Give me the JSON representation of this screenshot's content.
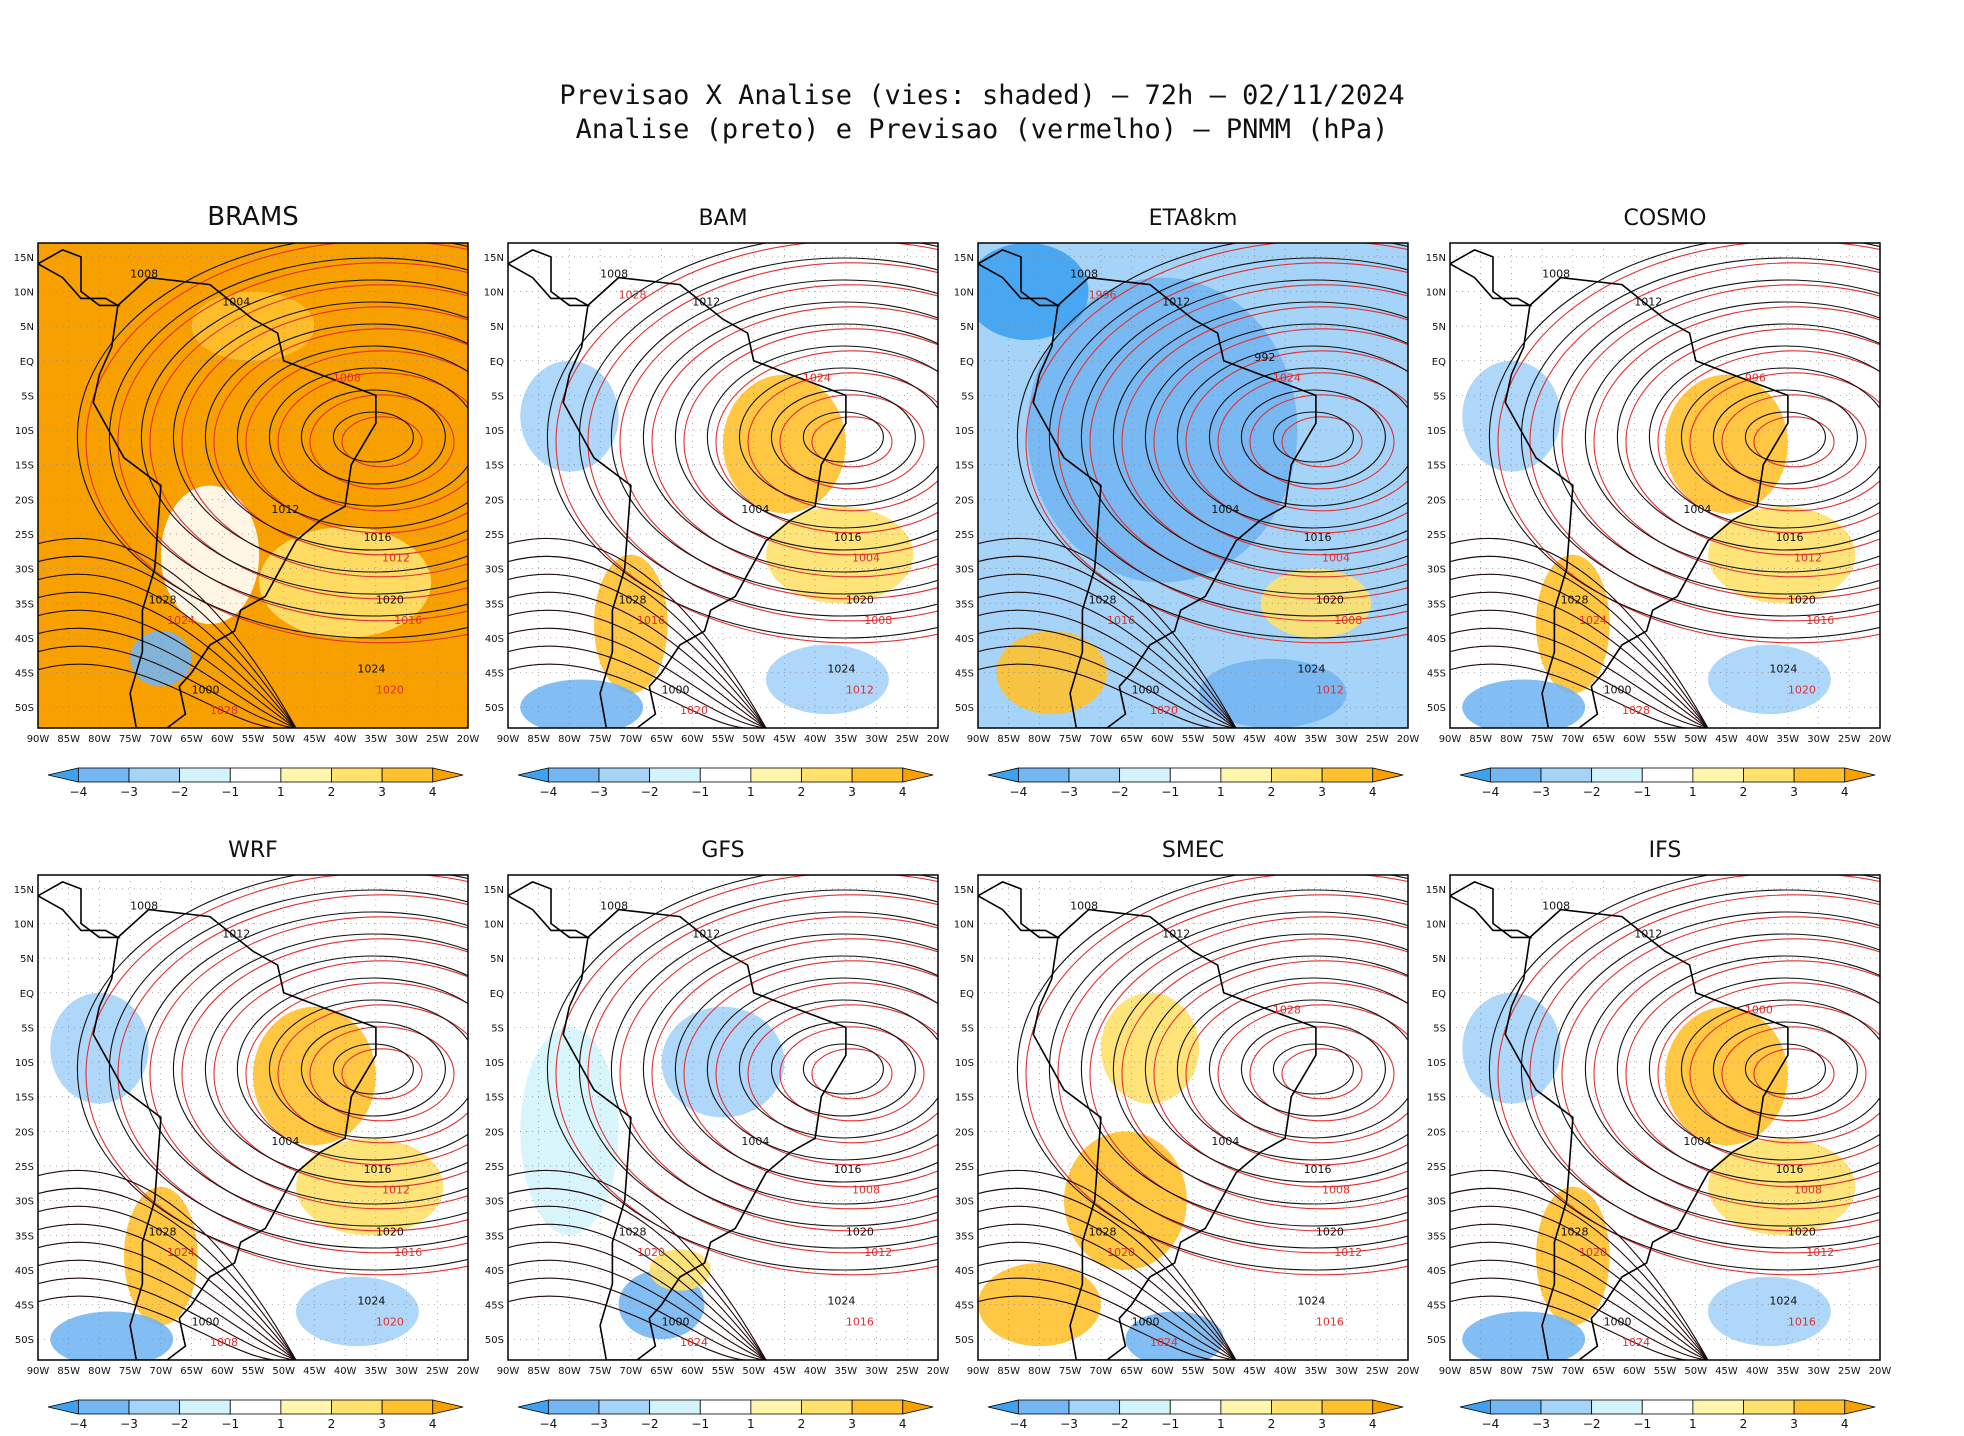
{
  "header": {
    "title_line1": "Previsao X Analise (vies: shaded) – 72h – 02/11/2024",
    "title_line2": "Analise (preto) e Previsao (vermelho) – PNMM (hPa)"
  },
  "axes": {
    "lat_labels": [
      "15N",
      "10N",
      "5N",
      "EQ",
      "5S",
      "10S",
      "15S",
      "20S",
      "25S",
      "30S",
      "35S",
      "40S",
      "45S",
      "50S"
    ],
    "lon_labels": [
      "90W",
      "85W",
      "80W",
      "75W",
      "70W",
      "65W",
      "60W",
      "55W",
      "50W",
      "45W",
      "40W",
      "35W",
      "30W",
      "25W",
      "20W"
    ]
  },
  "colorbar": {
    "labels": [
      "−4",
      "−3",
      "−2",
      "−1",
      "1",
      "2",
      "3",
      "4"
    ],
    "colors": [
      "#3fa2ef",
      "#74b6f2",
      "#a6d3f8",
      "#d4f4fc",
      "#ffffff",
      "#fff6ae",
      "#ffe16c",
      "#ffc12e",
      "#f8a000"
    ]
  },
  "colors": {
    "analysis_contour": "#111111",
    "forecast_contour": "#e23030"
  },
  "panels": [
    {
      "model": "BRAMS",
      "bias": "warm",
      "labels_black": [
        "1008",
        "1004",
        "1012",
        "1016",
        "1020",
        "1024",
        "1028",
        "1000"
      ],
      "labels_red": [
        "1012",
        "1016",
        "1020",
        "1024",
        "1028",
        "1008"
      ]
    },
    {
      "model": "BAM",
      "bias": "mixed",
      "labels_black": [
        "1008",
        "1012",
        "1004",
        "1016",
        "1020",
        "1024",
        "1028",
        "1000"
      ],
      "labels_red": [
        "1004",
        "1008",
        "1012",
        "1016",
        "1020",
        "1024",
        "1028"
      ]
    },
    {
      "model": "ETA8km",
      "bias": "cold",
      "labels_black": [
        "1008",
        "1012",
        "1004",
        "1016",
        "1020",
        "1024",
        "1028",
        "1000",
        "992"
      ],
      "labels_red": [
        "1004",
        "1008",
        "1012",
        "1016",
        "1020",
        "1024",
        "1996"
      ]
    },
    {
      "model": "COSMO",
      "bias": "mixed",
      "labels_black": [
        "1008",
        "1012",
        "1004",
        "1016",
        "1020",
        "1024",
        "1028",
        "1000"
      ],
      "labels_red": [
        "1012",
        "1016",
        "1020",
        "1024",
        "1028",
        "996"
      ]
    },
    {
      "model": "WRF",
      "bias": "mixed",
      "labels_black": [
        "1008",
        "1012",
        "1004",
        "1016",
        "1020",
        "1024",
        "1028",
        "1000"
      ],
      "labels_red": [
        "1012",
        "1016",
        "1020",
        "1024",
        "1008"
      ]
    },
    {
      "model": "GFS",
      "bias": "neutral",
      "labels_black": [
        "1008",
        "1012",
        "1004",
        "1016",
        "1020",
        "1024",
        "1028",
        "1000"
      ],
      "labels_red": [
        "1008",
        "1012",
        "1016",
        "1020",
        "1024"
      ]
    },
    {
      "model": "SMEC",
      "bias": "warm-west",
      "labels_black": [
        "1008",
        "1012",
        "1004",
        "1016",
        "1020",
        "1024",
        "1028",
        "1000"
      ],
      "labels_red": [
        "1008",
        "1012",
        "1016",
        "1020",
        "1024",
        "1028"
      ]
    },
    {
      "model": "IFS",
      "bias": "mixed",
      "labels_black": [
        "1008",
        "1012",
        "1004",
        "1016",
        "1020",
        "1024",
        "1028",
        "1000"
      ],
      "labels_red": [
        "1008",
        "1012",
        "1016",
        "1020",
        "1024",
        "1000"
      ]
    }
  ]
}
